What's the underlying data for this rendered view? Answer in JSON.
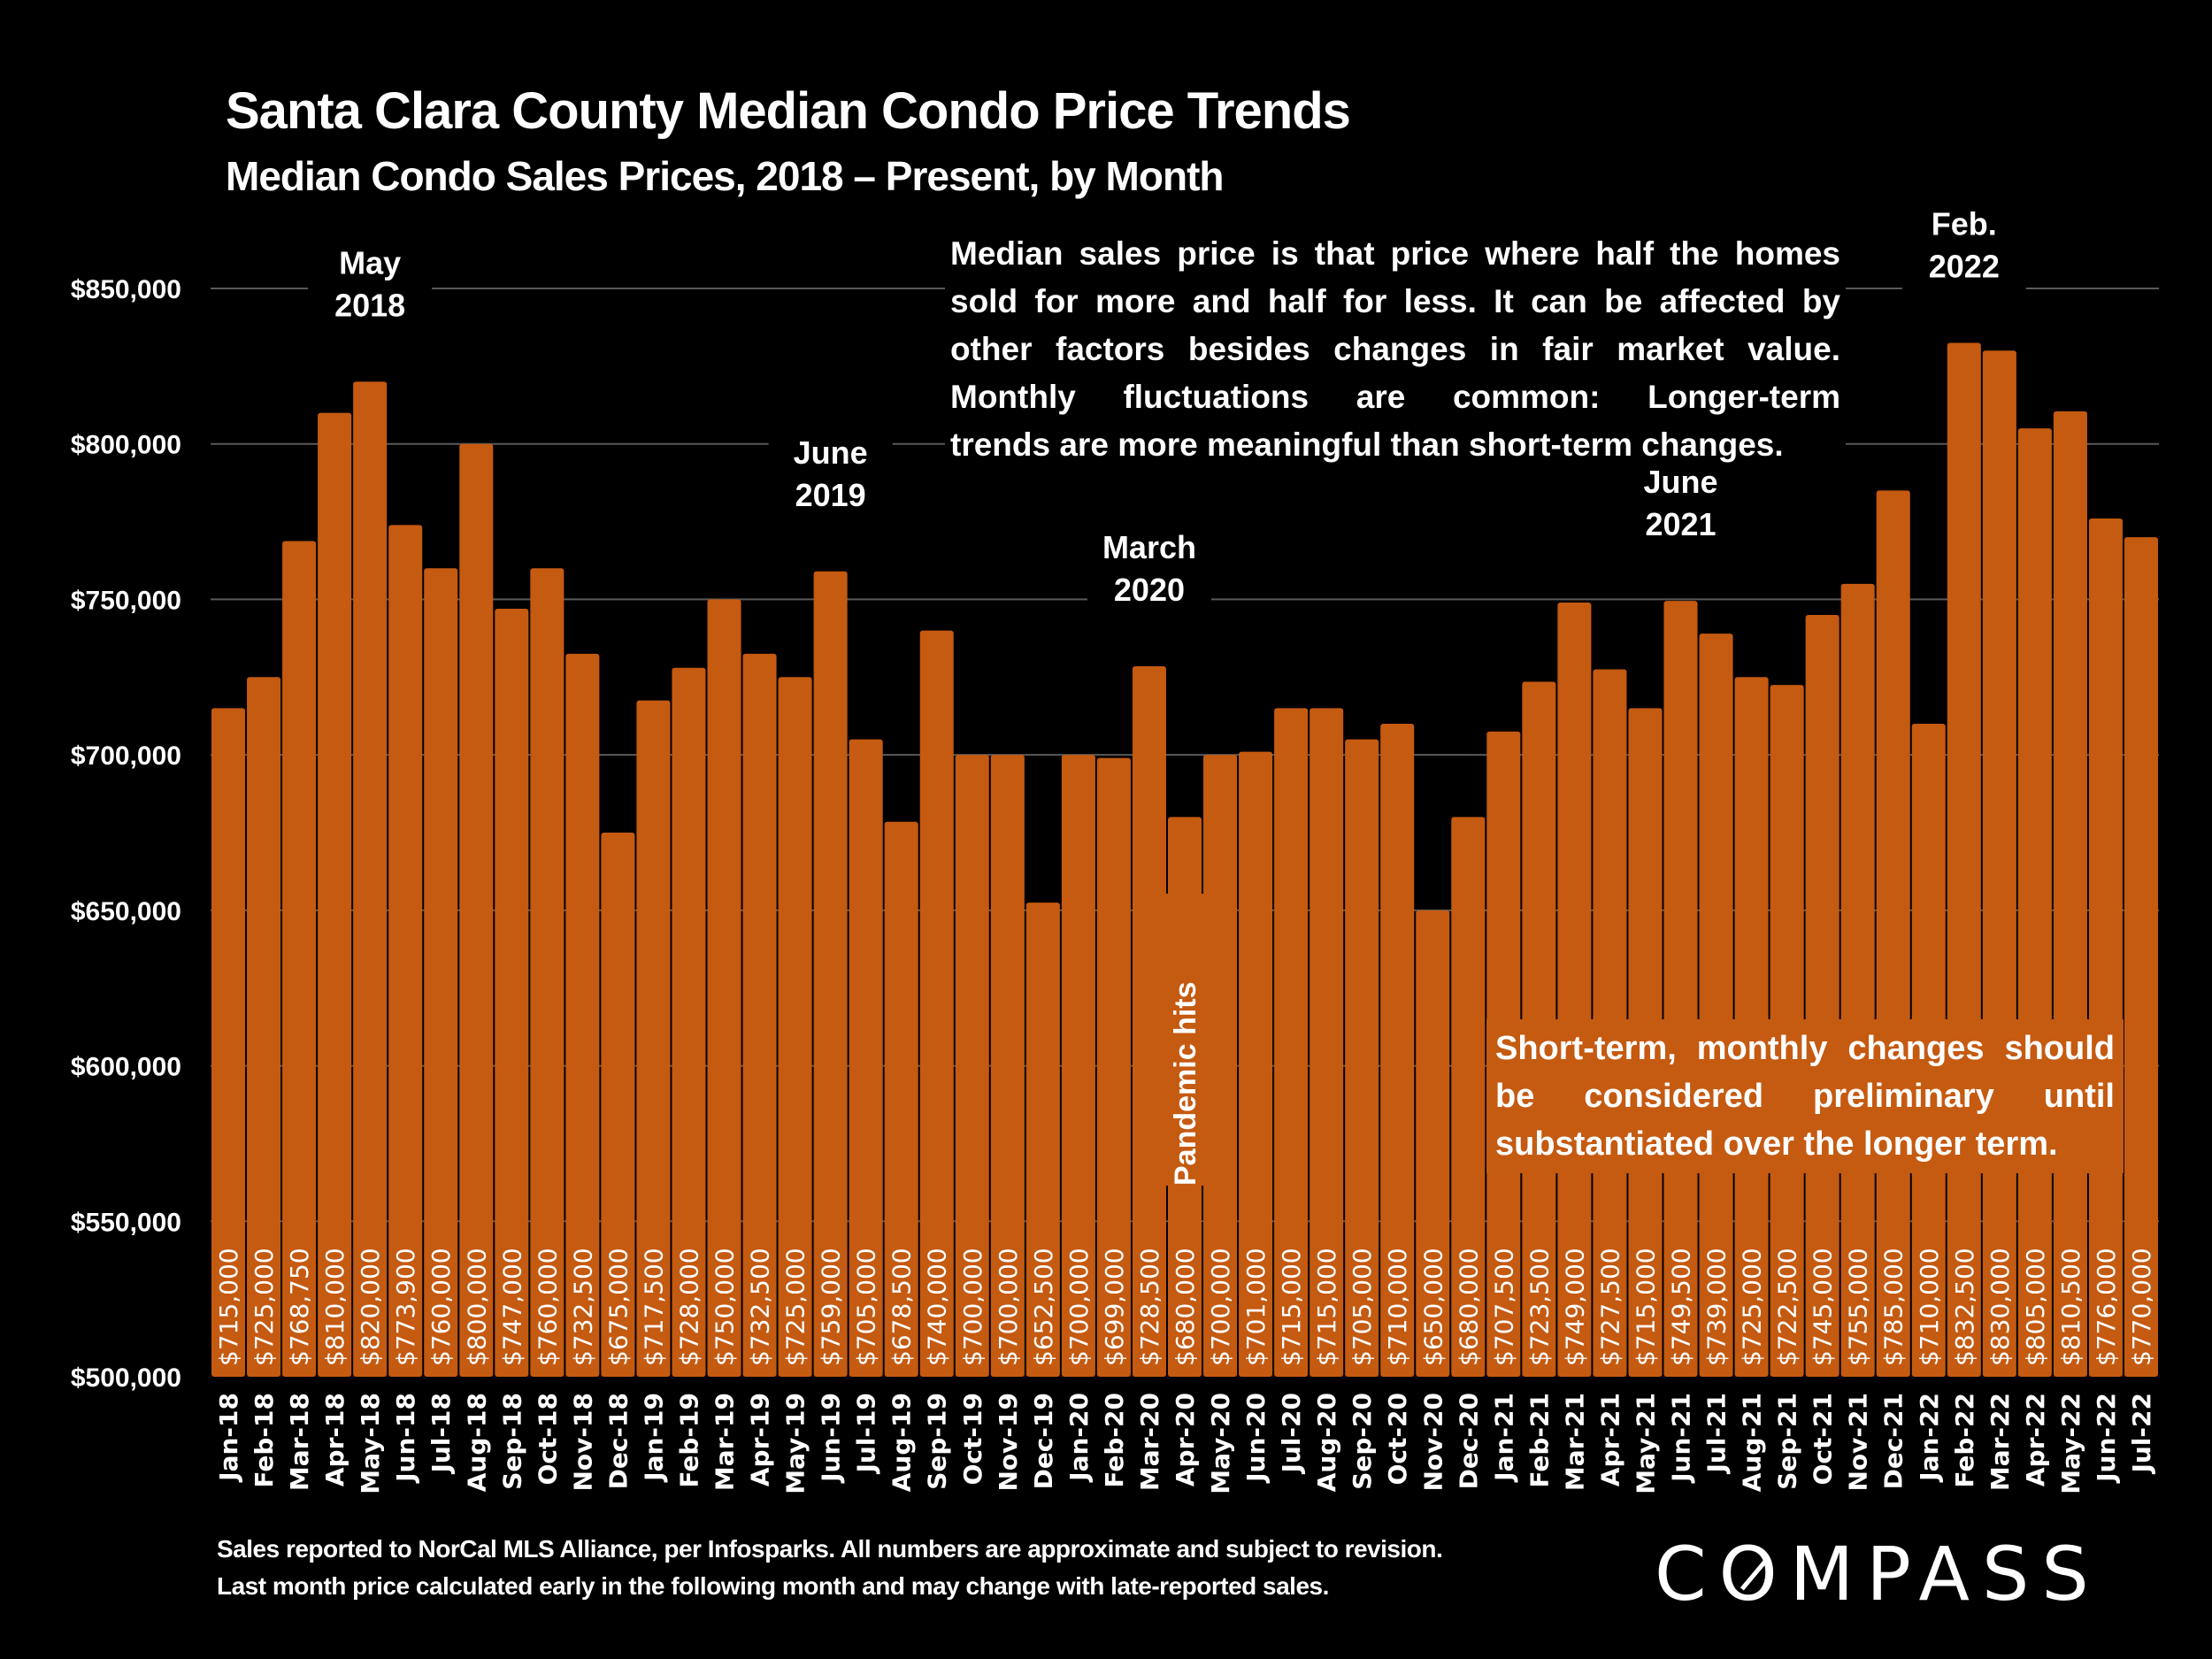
{
  "header": {
    "title": "Santa Clara County Median Condo Price Trends",
    "subtitle": "Median Condo Sales Prices, 2018 – Present, by Month"
  },
  "notes": {
    "top_lines": [
      "Median sales price is that price where half the homes",
      "sold for more and half for less. It can be affected by",
      "other factors besides changes in fair market value.",
      "Monthly fluctuations are common: Longer-term",
      "trends are more meaningful than short-term changes."
    ],
    "bottom_lines": [
      "Short-term, monthly changes should",
      "be considered preliminary until",
      "substantiated over the longer term."
    ]
  },
  "footer": {
    "line1": "Sales reported to NorCal MLS Alliance, per Infosparks. All numbers are approximate and subject to revision.",
    "line2": "Last month price calculated early in the following month and may change with late-reported sales.",
    "logo_text": "COMPASS"
  },
  "colors": {
    "bar": "#c55a11",
    "background": "#000000",
    "text": "#ffffff",
    "gridline": "#595959"
  },
  "chart_data": {
    "type": "bar",
    "title": "Santa Clara County Median Condo Price Trends",
    "subtitle": "Median Condo Sales Prices, 2018 – Present, by Month",
    "xlabel": "",
    "ylabel": "",
    "ylim": [
      500000,
      850000
    ],
    "yticks": [
      500000,
      550000,
      600000,
      650000,
      700000,
      750000,
      800000,
      850000
    ],
    "ytick_labels": [
      "$500,000",
      "$550,000",
      "$600,000",
      "$650,000",
      "$700,000",
      "$750,000",
      "$800,000",
      "$850,000"
    ],
    "grid": true,
    "legend": "none",
    "categories": [
      "Jan-18",
      "Feb-18",
      "Mar-18",
      "Apr-18",
      "May-18",
      "Jun-18",
      "Jul-18",
      "Aug-18",
      "Sep-18",
      "Oct-18",
      "Nov-18",
      "Dec-18",
      "Jan-19",
      "Feb-19",
      "Mar-19",
      "Apr-19",
      "May-19",
      "Jun-19",
      "Jul-19",
      "Aug-19",
      "Sep-19",
      "Oct-19",
      "Nov-19",
      "Dec-19",
      "Jan-20",
      "Feb-20",
      "Mar-20",
      "Apr-20",
      "May-20",
      "Jun-20",
      "Jul-20",
      "Aug-20",
      "Sep-20",
      "Oct-20",
      "Nov-20",
      "Dec-20",
      "Jan-21",
      "Feb-21",
      "Mar-21",
      "Apr-21",
      "May-21",
      "Jun-21",
      "Jul-21",
      "Aug-21",
      "Sep-21",
      "Oct-21",
      "Nov-21",
      "Dec-21",
      "Jan-22",
      "Feb-22",
      "Mar-22",
      "Apr-22",
      "May-22",
      "Jun-22",
      "Jul-22"
    ],
    "values": [
      715000,
      725000,
      768750,
      810000,
      820000,
      773900,
      760000,
      800000,
      747000,
      760000,
      732500,
      675000,
      717500,
      728000,
      750000,
      732500,
      725000,
      759000,
      705000,
      678500,
      740000,
      700000,
      700000,
      652500,
      700000,
      699000,
      728500,
      680000,
      700000,
      701000,
      715000,
      715000,
      705000,
      710000,
      650000,
      680000,
      707500,
      723500,
      749000,
      727500,
      715000,
      749500,
      739000,
      725000,
      722500,
      745000,
      755000,
      785000,
      710000,
      832500,
      830000,
      805000,
      810500,
      776000,
      770000
    ],
    "data_labels": [
      "$715,000",
      "$725,000",
      "$768,750",
      "$810,000",
      "$820,000",
      "$773,900",
      "$760,000",
      "$800,000",
      "$747,000",
      "$760,000",
      "$732,500",
      "$675,000",
      "$717,500",
      "$728,000",
      "$750,000",
      "$732,500",
      "$725,000",
      "$759,000",
      "$705,000",
      "$678,500",
      "$740,000",
      "$700,000",
      "$700,000",
      "$652,500",
      "$700,000",
      "$699,000",
      "$728,500",
      "$680,000",
      "$700,000",
      "$701,000",
      "$715,000",
      "$715,000",
      "$705,000",
      "$710,000",
      "$650,000",
      "$680,000",
      "$707,500",
      "$723,500",
      "$749,000",
      "$727,500",
      "$715,000",
      "$749,500",
      "$739,000",
      "$725,000",
      "$722,500",
      "$745,000",
      "$755,000",
      "$785,000",
      "$710,000",
      "$832,500",
      "$830,000",
      "$805,000",
      "$810,500",
      "$776,000",
      "$770,000"
    ],
    "annotations": [
      {
        "text_lines": [
          "May",
          "2018"
        ],
        "category": "May-18"
      },
      {
        "text_lines": [
          "June",
          "2019"
        ],
        "category": "Jun-19"
      },
      {
        "text_lines": [
          "March",
          "2020"
        ],
        "category": "Mar-20"
      },
      {
        "text_lines": [
          "June",
          "2021"
        ],
        "category": "Jun-21"
      },
      {
        "text_lines": [
          "Feb.",
          "2022"
        ],
        "category": "Feb-22"
      },
      {
        "text_lines": [
          "Pandemic hits"
        ],
        "category": "Apr-20",
        "orientation": "vertical"
      }
    ]
  }
}
